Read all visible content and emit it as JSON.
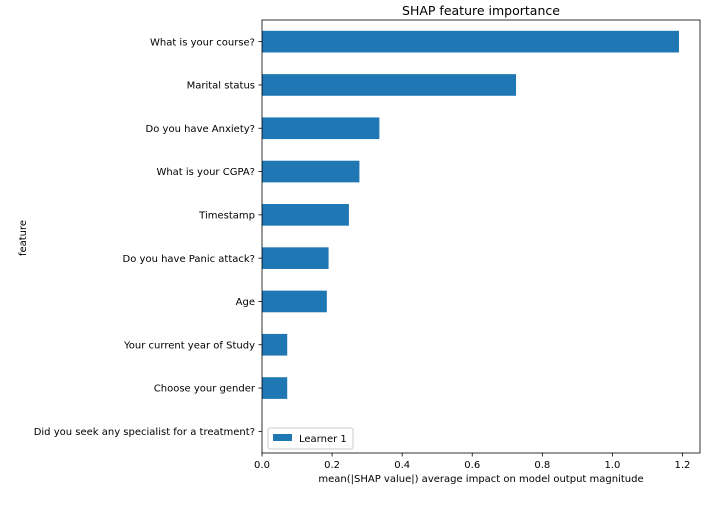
{
  "chart_data": {
    "type": "bar",
    "orientation": "horizontal",
    "title": "SHAP feature importance",
    "xlabel": "mean(|SHAP value|) average impact on model output magnitude",
    "ylabel": "feature",
    "xlim": [
      0,
      1.25
    ],
    "xticks": [
      0.0,
      0.2,
      0.4,
      0.6,
      0.8,
      1.0,
      1.2
    ],
    "xtick_labels": [
      "0.0",
      "0.2",
      "0.4",
      "0.6",
      "0.8",
      "1.0",
      "1.2"
    ],
    "grid": false,
    "legend_position": "lower-left",
    "categories": [
      "What is your course?",
      "Marital status",
      "Do you have Anxiety?",
      "What is your CGPA?",
      "Timestamp",
      "Do you have Panic attack?",
      "Age",
      "Your current year of Study",
      "Choose your gender",
      "Did you seek any specialist for a treatment?"
    ],
    "series": [
      {
        "name": "Learner 1",
        "color": "#1f77b4",
        "values": [
          1.19,
          0.725,
          0.335,
          0.278,
          0.248,
          0.19,
          0.185,
          0.072,
          0.072,
          0.0
        ]
      }
    ]
  }
}
